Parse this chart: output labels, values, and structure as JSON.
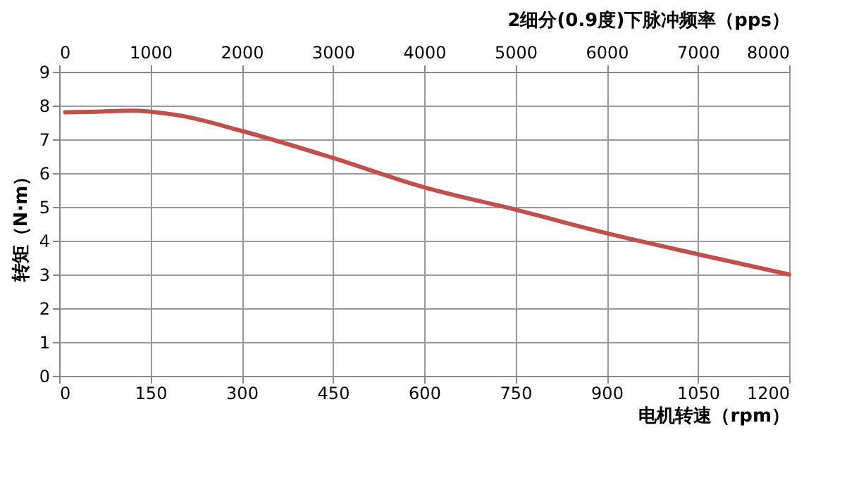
{
  "chart_data": {
    "type": "line",
    "xlabel": "电机转速（rpm）",
    "ylabel": "转矩（N·m）",
    "x2label": "2细分(0.9度)下脉冲频率（pps）",
    "x": [
      10,
      60,
      120,
      150,
      200,
      300,
      450,
      600,
      750,
      900,
      1050,
      1200
    ],
    "series": [
      {
        "color": "#c0504d",
        "values": [
          7.8,
          7.82,
          7.85,
          7.82,
          7.7,
          7.25,
          6.45,
          5.58,
          4.92,
          4.22,
          3.6,
          3.0
        ]
      }
    ],
    "xlim": [
      0,
      1200
    ],
    "xticks": [
      0,
      150,
      300,
      450,
      600,
      750,
      900,
      1050,
      1200
    ],
    "x2lim": [
      0,
      8000
    ],
    "x2ticks": [
      0,
      1000,
      2000,
      3000,
      4000,
      5000,
      6000,
      7000,
      8000
    ],
    "ylim": [
      0,
      9
    ],
    "yticks": [
      0,
      1,
      2,
      3,
      4,
      5,
      6,
      7,
      8,
      9
    ],
    "grid": true,
    "marker": "none",
    "line_style": "solid"
  }
}
